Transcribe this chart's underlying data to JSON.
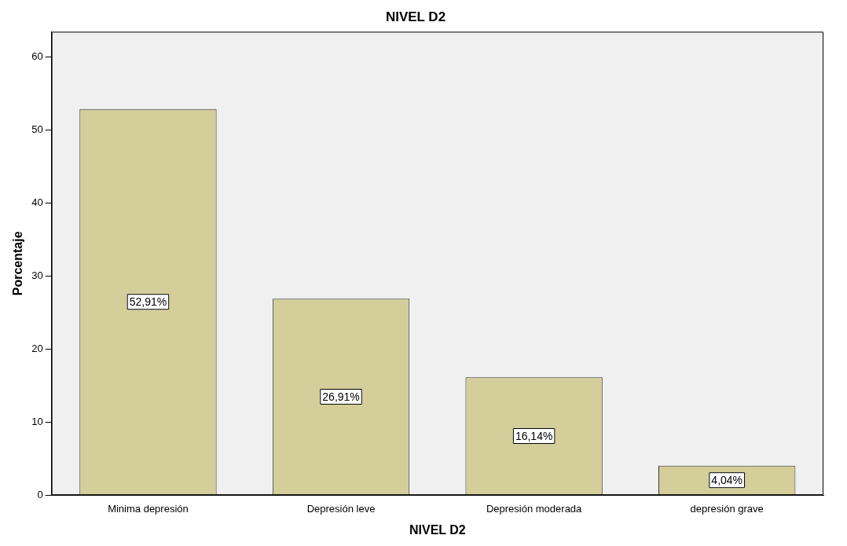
{
  "chart_data": {
    "type": "bar",
    "title": "NIVEL D2",
    "xlabel": "NIVEL D2",
    "ylabel": "Porcentaje",
    "categories": [
      "Minima depresión",
      "Depresión leve",
      "Depresión moderada",
      "depresión grave"
    ],
    "values": [
      52.91,
      26.91,
      16.14,
      4.04
    ],
    "value_labels": [
      "52,91%",
      "26,91%",
      "16,14%",
      "4,04%"
    ],
    "color": "#d3ce9a",
    "ylim": [
      0,
      63.5
    ],
    "yticks": [
      0,
      10,
      20,
      30,
      40,
      50,
      60
    ]
  }
}
